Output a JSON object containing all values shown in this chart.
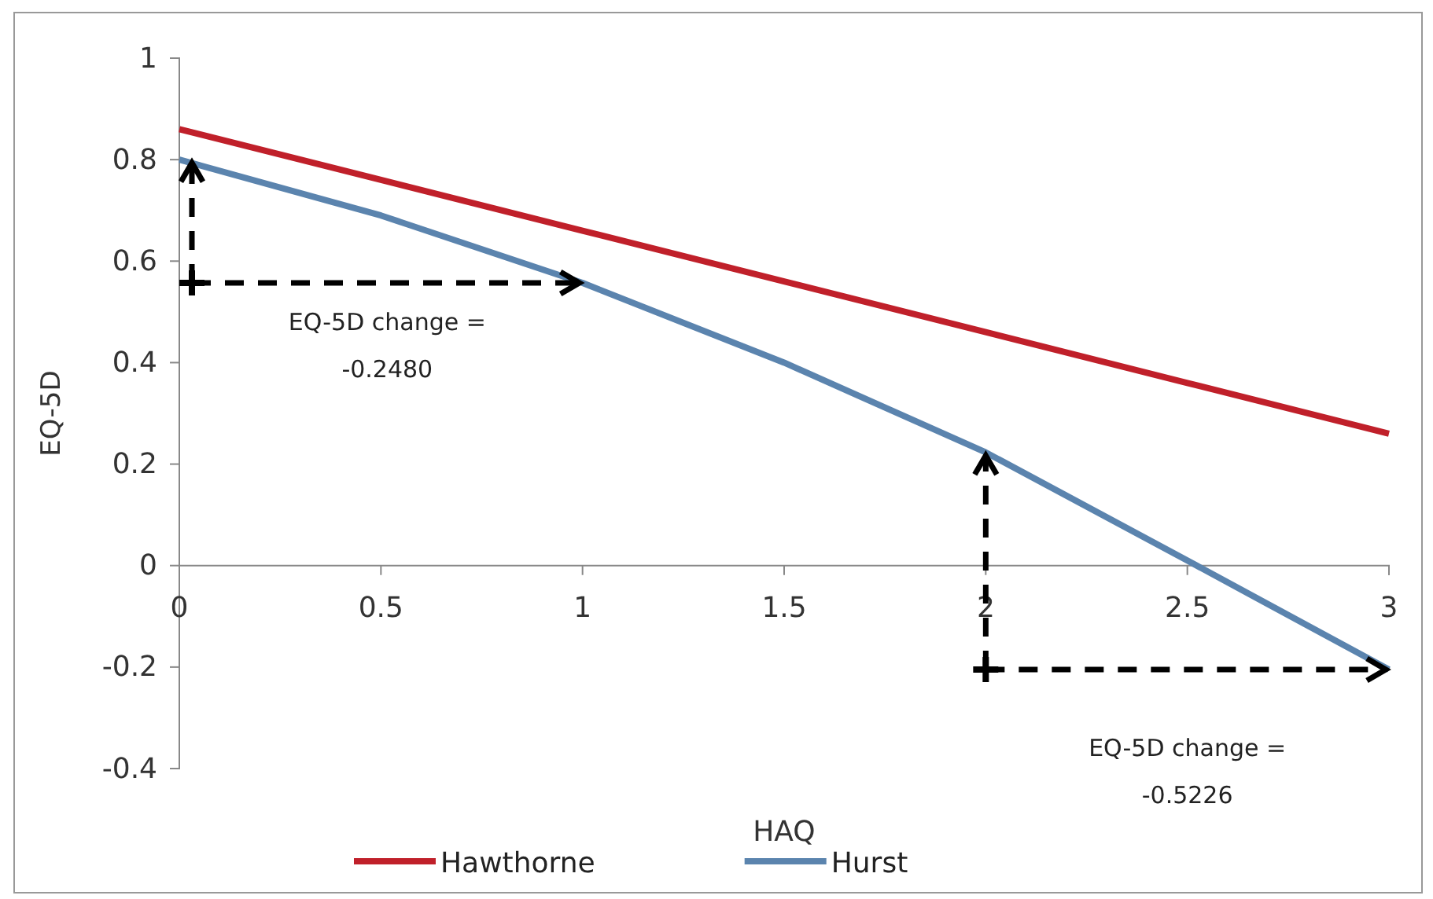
{
  "chart_data": {
    "type": "line",
    "xlabel": "HAQ",
    "ylabel": "EQ-5D",
    "x": [
      0,
      0.5,
      1,
      1.5,
      2,
      2.5,
      3
    ],
    "series": [
      {
        "name": "Hawthorne",
        "color": "#c0202a",
        "values": [
          0.86,
          0.76,
          0.66,
          0.56,
          0.46,
          0.36,
          0.26
        ]
      },
      {
        "name": "Hurst",
        "color": "#5b84ae",
        "values": [
          0.8,
          0.69,
          0.557,
          0.4,
          0.223,
          0.01,
          -0.205
        ]
      }
    ],
    "xlim": [
      0,
      3
    ],
    "xticks": [
      0,
      0.5,
      1,
      1.5,
      2,
      2.5,
      3
    ],
    "ylim": [
      -0.4,
      1
    ],
    "yticks": [
      -0.4,
      -0.2,
      0,
      0.2,
      0.4,
      0.6,
      0.8,
      1
    ],
    "annotations": [
      "EQ-5D change =\n-0.2480",
      "EQ-5D change =\n-0.5226"
    ],
    "legend": "bottom",
    "grid": false,
    "marker": "none",
    "line_style": "solid"
  }
}
